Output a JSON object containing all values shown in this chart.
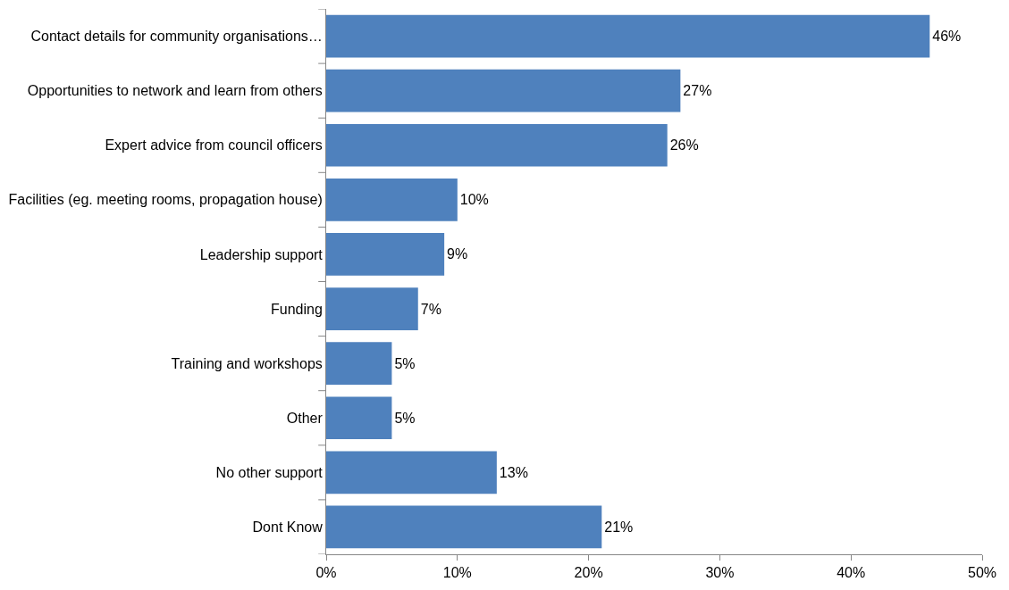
{
  "chart_data": {
    "type": "bar",
    "orientation": "horizontal",
    "categories": [
      "Contact details for community organisations…",
      "Opportunities to network and learn from others",
      "Expert advice from council officers",
      "Facilities (eg. meeting rooms, propagation house)",
      "Leadership support",
      "Funding",
      "Training and workshops",
      "Other",
      "No other support",
      "Dont Know"
    ],
    "values": [
      46,
      27,
      26,
      10,
      9,
      7,
      5,
      5,
      13,
      21
    ],
    "value_labels": [
      "46%",
      "27%",
      "26%",
      "10%",
      "9%",
      "7%",
      "5%",
      "5%",
      "13%",
      "21%"
    ],
    "color": "#4f81bd",
    "xlim": [
      0,
      50
    ],
    "xticks": [
      {
        "value": 0,
        "label": "0%"
      },
      {
        "value": 10,
        "label": "10%"
      },
      {
        "value": 20,
        "label": "20%"
      },
      {
        "value": 30,
        "label": "30%"
      },
      {
        "value": 40,
        "label": "40%"
      },
      {
        "value": 50,
        "label": "50%"
      }
    ]
  }
}
